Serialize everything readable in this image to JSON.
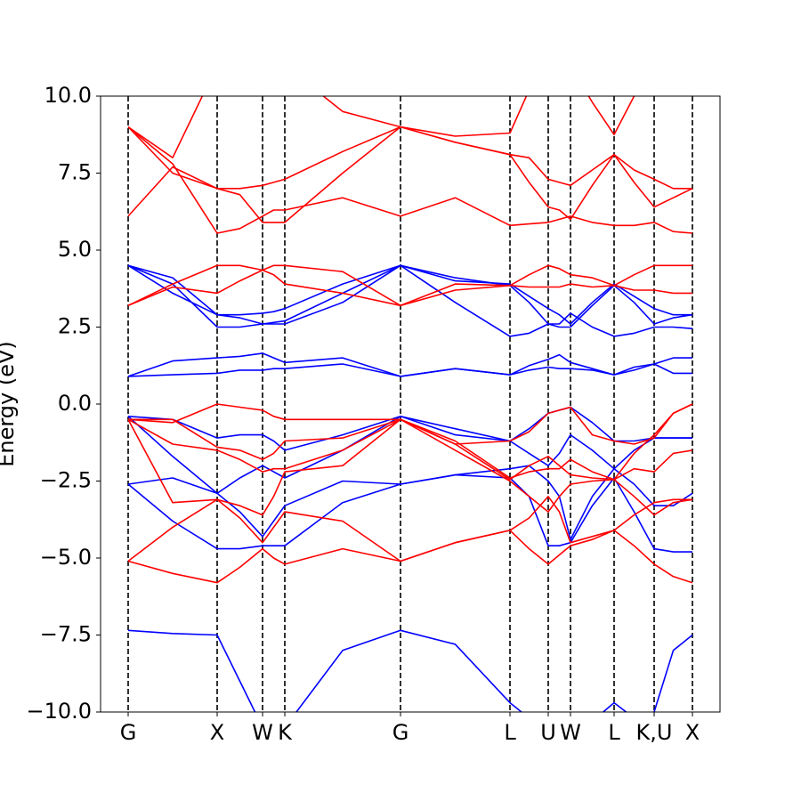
{
  "chart_data": {
    "type": "line",
    "ylabel": "Energy (eV)",
    "x": [
      0,
      0.5,
      1.0,
      1.255,
      1.51,
      1.635,
      1.76,
      2.41,
      3.06,
      3.675,
      4.29,
      4.505,
      4.72,
      4.845,
      4.97,
      5.215,
      5.46,
      5.685,
      5.91,
      6.125,
      6.34
    ],
    "xlim": [
      -0.31,
      6.65
    ],
    "xticks": [
      {
        "value": 0,
        "label": "G"
      },
      {
        "value": 1.0,
        "label": "X"
      },
      {
        "value": 1.51,
        "label": "W"
      },
      {
        "value": 1.76,
        "label": "K"
      },
      {
        "value": 3.06,
        "label": "G"
      },
      {
        "value": 4.29,
        "label": "L"
      },
      {
        "value": 4.72,
        "label": "U"
      },
      {
        "value": 4.97,
        "label": "W"
      },
      {
        "value": 5.46,
        "label": "L"
      },
      {
        "value": 5.91,
        "label": "K,U"
      },
      {
        "value": 6.34,
        "label": "X"
      }
    ],
    "ylim": [
      -10,
      10
    ],
    "yticks": [
      {
        "value": -10,
        "label": "−10.0"
      },
      {
        "value": -7.5,
        "label": "−7.5"
      },
      {
        "value": -5,
        "label": "−5.0"
      },
      {
        "value": -2.5,
        "label": "−2.5"
      },
      {
        "value": 0,
        "label": "0.0"
      },
      {
        "value": 2.5,
        "label": "2.5"
      },
      {
        "value": 5,
        "label": "5.0"
      },
      {
        "value": 7.5,
        "label": "7.5"
      },
      {
        "value": 10,
        "label": "10.0"
      }
    ],
    "vlines": true,
    "series": [
      {
        "color": "#0000ff",
        "values": [
          -7.35,
          -7.45,
          -7.5,
          -9.0,
          -10.5,
          -11,
          -10.5,
          -8.0,
          -7.35,
          -7.8,
          -9.7,
          -10.2,
          -10.5,
          -11,
          -11,
          -10.3,
          -9.7,
          -10.2,
          -10.0,
          -8.0,
          -7.5
        ]
      },
      {
        "color": "#0000ff",
        "values": [
          -0.4,
          -0.5,
          -1.1,
          -1.0,
          -1.0,
          -1.2,
          -1.5,
          -1.0,
          -0.4,
          -0.8,
          -1.2,
          -0.8,
          -0.3,
          -0.2,
          -0.1,
          -0.6,
          -1.2,
          -1.2,
          -1.1,
          -1.1,
          -1.1
        ]
      },
      {
        "color": "#0000ff",
        "values": [
          -0.4,
          -1.7,
          -2.9,
          -2.4,
          -2.0,
          -2.2,
          -2.4,
          -1.5,
          -0.4,
          -1.0,
          -1.2,
          -1.6,
          -2.0,
          -1.6,
          -1.0,
          -1.5,
          -2.1,
          -1.5,
          -1.1,
          -1.1,
          -1.1
        ]
      },
      {
        "color": "#0000ff",
        "values": [
          -2.6,
          -2.4,
          -2.9,
          -3.5,
          -4.3,
          -3.8,
          -3.3,
          -2.5,
          -2.6,
          -2.3,
          -2.1,
          -2.0,
          -2.5,
          -3.0,
          -4.4,
          -3.0,
          -2.1,
          -2.6,
          -3.3,
          -3.3,
          -2.9
        ]
      },
      {
        "color": "#0000ff",
        "values": [
          -2.6,
          -3.8,
          -4.7,
          -4.7,
          -4.6,
          -4.6,
          -4.6,
          -3.2,
          -2.6,
          -2.3,
          -2.4,
          -3.0,
          -4.6,
          -4.6,
          -4.5,
          -3.3,
          -2.4,
          -3.5,
          -4.7,
          -4.8,
          -4.8
        ]
      },
      {
        "color": "#0000ff",
        "values": [
          0.9,
          0.95,
          1.0,
          1.1,
          1.1,
          1.15,
          1.15,
          1.3,
          0.9,
          1.15,
          0.95,
          1.1,
          1.2,
          1.15,
          1.15,
          1.1,
          0.95,
          1.1,
          1.3,
          1.0,
          1.0
        ]
      },
      {
        "color": "#0000ff",
        "values": [
          0.9,
          1.4,
          1.5,
          1.55,
          1.65,
          1.5,
          1.35,
          1.5,
          0.9,
          1.15,
          0.95,
          1.25,
          1.45,
          1.6,
          1.35,
          1.15,
          0.95,
          1.2,
          1.3,
          1.5,
          1.5
        ]
      },
      {
        "color": "#0000ff",
        "values": [
          4.5,
          3.6,
          2.9,
          2.9,
          2.95,
          3.0,
          3.1,
          3.9,
          4.5,
          3.3,
          2.2,
          2.3,
          2.6,
          2.6,
          2.95,
          2.5,
          2.2,
          2.3,
          2.5,
          2.5,
          2.45
        ]
      },
      {
        "color": "#0000ff",
        "values": [
          4.5,
          3.9,
          2.5,
          2.5,
          2.6,
          2.6,
          2.6,
          3.3,
          4.5,
          4.1,
          3.85,
          3.3,
          2.6,
          2.5,
          2.5,
          3.2,
          3.85,
          3.3,
          2.6,
          2.8,
          2.9
        ]
      },
      {
        "color": "#0000ff",
        "values": [
          4.5,
          4.1,
          2.9,
          2.8,
          2.6,
          2.65,
          2.7,
          3.6,
          4.5,
          4.0,
          3.9,
          3.5,
          3.1,
          2.9,
          2.6,
          3.3,
          3.9,
          3.5,
          3.1,
          2.9,
          2.9
        ]
      },
      {
        "color": "#ff0000",
        "values": [
          -5.1,
          -5.5,
          -5.8,
          -5.3,
          -4.7,
          -5.0,
          -5.2,
          -4.7,
          -5.1,
          -4.5,
          -4.1,
          -4.7,
          -5.2,
          -4.9,
          -4.6,
          -4.4,
          -4.1,
          -4.6,
          -5.2,
          -5.6,
          -5.8
        ]
      },
      {
        "color": "#ff0000",
        "values": [
          -5.1,
          -4.0,
          -3.1,
          -3.7,
          -4.5,
          -4.0,
          -3.5,
          -3.8,
          -5.1,
          -4.5,
          -4.1,
          -3.7,
          -3.0,
          -3.5,
          -4.5,
          -4.3,
          -4.1,
          -3.6,
          -3.2,
          -3.1,
          -3.1
        ]
      },
      {
        "color": "#ff0000",
        "values": [
          -0.5,
          -3.2,
          -3.1,
          -3.3,
          -3.6,
          -3.0,
          -2.2,
          -2.0,
          -0.5,
          -1.5,
          -2.5,
          -3.0,
          -3.5,
          -3.0,
          -2.6,
          -2.5,
          -2.45,
          -3.0,
          -3.6,
          -3.2,
          -3.1
        ]
      },
      {
        "color": "#ff0000",
        "values": [
          -0.5,
          -1.3,
          -1.5,
          -1.8,
          -2.2,
          -2.1,
          -2.1,
          -1.5,
          -0.5,
          -1.3,
          -2.45,
          -2.0,
          -1.7,
          -2.0,
          -2.3,
          -2.4,
          -2.45,
          -2.1,
          -2.2,
          -1.6,
          -1.5
        ]
      },
      {
        "color": "#ff0000",
        "values": [
          -0.5,
          -0.5,
          -1.4,
          -1.5,
          -1.8,
          -1.6,
          -1.2,
          -1.1,
          -0.5,
          -1.2,
          -2.4,
          -2.2,
          -2.1,
          -2.1,
          -1.8,
          -2.2,
          -2.45,
          -1.6,
          -1.0,
          -0.3,
          0.0
        ]
      },
      {
        "color": "#ff0000",
        "values": [
          -0.5,
          -0.6,
          0.0,
          -0.1,
          -0.2,
          -0.4,
          -0.5,
          -0.5,
          -0.5,
          -1.3,
          -1.2,
          -0.9,
          -0.3,
          -0.2,
          -0.1,
          -1.0,
          -1.2,
          -1.3,
          -1.1,
          -0.3,
          0.0
        ]
      },
      {
        "color": "#ff0000",
        "values": [
          3.2,
          3.8,
          3.6,
          4.0,
          4.35,
          4.2,
          3.9,
          3.6,
          3.2,
          3.9,
          3.85,
          3.8,
          3.8,
          3.8,
          3.9,
          3.8,
          3.85,
          3.7,
          3.7,
          3.6,
          3.6
        ]
      },
      {
        "color": "#ff0000",
        "values": [
          3.2,
          3.9,
          4.5,
          4.5,
          4.35,
          4.5,
          4.5,
          4.3,
          3.2,
          3.7,
          3.85,
          4.2,
          4.5,
          4.4,
          4.2,
          4.1,
          3.85,
          4.2,
          4.5,
          4.5,
          4.5
        ]
      },
      {
        "color": "#ff0000",
        "values": [
          6.1,
          7.7,
          7.0,
          7.0,
          7.1,
          7.2,
          7.3,
          8.2,
          9.0,
          8.5,
          8.1,
          8.0,
          7.3,
          7.2,
          7.1,
          7.6,
          8.1,
          7.6,
          7.3,
          7.0,
          7.0
        ]
      },
      {
        "color": "#ff0000",
        "values": [
          9.0,
          7.8,
          5.55,
          5.7,
          6.1,
          6.3,
          6.3,
          6.7,
          6.1,
          6.7,
          5.8,
          5.85,
          5.9,
          6.0,
          6.1,
          5.9,
          5.8,
          5.8,
          5.9,
          5.6,
          5.55
        ]
      },
      {
        "color": "#ff0000",
        "values": [
          9.0,
          7.5,
          7.0,
          6.8,
          5.9,
          5.9,
          5.9,
          7.5,
          9.0,
          8.5,
          8.1,
          7.2,
          6.4,
          6.3,
          6.0,
          7.1,
          8.1,
          7.2,
          6.4,
          6.7,
          7.0
        ]
      },
      {
        "color": "#ff0000",
        "values": [
          9.0,
          8.0,
          11,
          11,
          11,
          11,
          11,
          9.5,
          9.0,
          8.7,
          8.8,
          10.2,
          11,
          11,
          11,
          9.8,
          8.75,
          10,
          11,
          11,
          11
        ]
      }
    ]
  }
}
